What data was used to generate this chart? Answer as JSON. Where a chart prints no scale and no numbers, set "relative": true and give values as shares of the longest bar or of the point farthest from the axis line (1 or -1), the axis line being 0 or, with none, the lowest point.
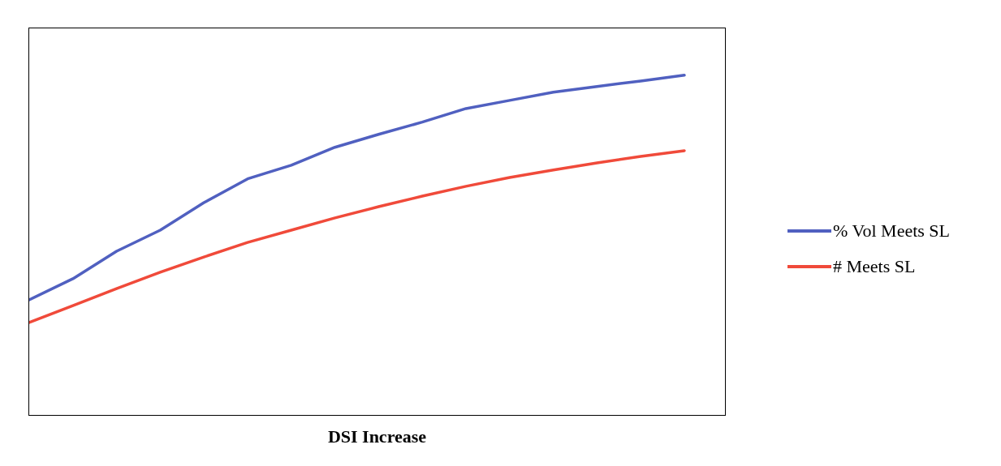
{
  "chart_data": {
    "type": "line",
    "relative": true,
    "xlabel": "DSI Increase",
    "categories": [
      null,
      null,
      null,
      null,
      null,
      null,
      null,
      null,
      null,
      null,
      null,
      null,
      null,
      null,
      null,
      null
    ],
    "legend": "right",
    "marker": "none",
    "series": [
      {
        "name": "% Vol Meets SL",
        "color": "#5060c0",
        "values": [
          0.339,
          0.401,
          0.482,
          0.544,
          0.625,
          0.695,
          0.735,
          0.788,
          0.826,
          0.862,
          0.902,
          0.926,
          0.95,
          0.967,
          0.983,
          1
        ]
      },
      {
        "name": "# Meets SL",
        "color": "#f04a3a",
        "values": [
          0.272,
          0.322,
          0.372,
          0.42,
          0.465,
          0.508,
          0.544,
          0.58,
          0.613,
          0.644,
          0.673,
          0.699,
          0.721,
          0.742,
          0.761,
          0.778
        ]
      }
    ]
  }
}
